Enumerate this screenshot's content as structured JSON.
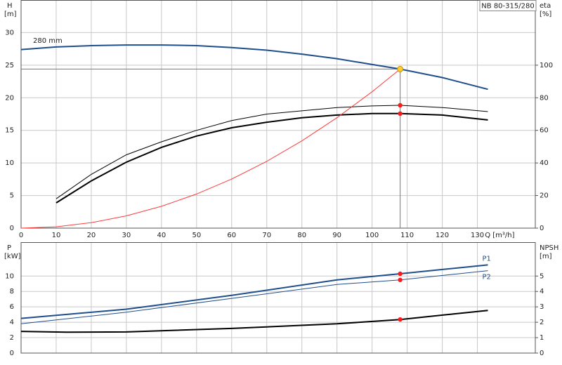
{
  "chart_data": [
    {
      "type": "line",
      "id_label": "NB 80-315/280",
      "ylabel": "H",
      "yunit": "[m]",
      "y2label": "eta",
      "y2unit": "[%]",
      "xlabel": "Q [m³/h]",
      "xlim": [
        0,
        146.5
      ],
      "ylim": [
        0,
        35
      ],
      "y2lim": [
        0,
        140
      ],
      "xticks": [
        0,
        10,
        20,
        30,
        40,
        50,
        60,
        70,
        80,
        90,
        100,
        110,
        120,
        130
      ],
      "yticks": [
        0,
        5,
        10,
        15,
        20,
        25,
        30
      ],
      "y2ticks": [
        0,
        20,
        40,
        60,
        80,
        100
      ],
      "grid": true,
      "series": [
        {
          "name": "280 mm",
          "color": "#1f4e8c",
          "line_width": 2,
          "axis": "y",
          "x": [
            0,
            10,
            20,
            30,
            40,
            50,
            60,
            70,
            80,
            90,
            100,
            108,
            120,
            133
          ],
          "values": [
            27.4,
            27.8,
            28.0,
            28.1,
            28.1,
            28.0,
            27.7,
            27.3,
            26.7,
            26.0,
            25.1,
            24.4,
            23.1,
            21.3
          ]
        },
        {
          "color": "#000000",
          "line_width": 1,
          "axis": "y2",
          "x": [
            10,
            20,
            30,
            40,
            50,
            60,
            70,
            80,
            90,
            100,
            108,
            120,
            133
          ],
          "values": [
            18,
            33,
            45,
            53,
            60,
            66,
            70,
            72,
            74,
            75,
            75.4,
            74,
            71.5
          ]
        },
        {
          "color": "#000000",
          "line_width": 2,
          "axis": "y2",
          "x": [
            10,
            20,
            30,
            40,
            50,
            60,
            70,
            80,
            90,
            100,
            108,
            120,
            133
          ],
          "values": [
            15.5,
            29,
            40.5,
            49.6,
            56.5,
            61.6,
            65,
            67.7,
            69.4,
            70.3,
            70.3,
            69.4,
            66.4
          ]
        },
        {
          "color": "#ff3b3b",
          "line_width": 1,
          "axis": "y",
          "x": [
            0,
            10,
            20,
            30,
            40,
            50,
            60,
            70,
            80,
            90,
            100,
            108
          ],
          "values": [
            0,
            0.21,
            0.84,
            1.88,
            3.35,
            5.23,
            7.53,
            10.25,
            13.39,
            16.94,
            20.92,
            24.4
          ]
        }
      ],
      "points": [
        {
          "x": 108,
          "y": 75.4,
          "axis": "y2",
          "color": "#ff1a1a"
        },
        {
          "x": 108,
          "y": 70.3,
          "axis": "y2",
          "color": "#ff1a1a"
        },
        {
          "x": 108,
          "y": 24.4,
          "axis": "y",
          "color": "#ffcc33",
          "guides": true
        }
      ]
    },
    {
      "type": "line",
      "ylabel": "P",
      "yunit": "[kW]",
      "y2label": "NPSH",
      "y2unit": "[m]",
      "xlim": [
        0,
        146.5
      ],
      "ylim": [
        0,
        14.4
      ],
      "y2lim": [
        0,
        7.2
      ],
      "yticks": [
        0,
        2,
        4,
        6,
        8,
        10
      ],
      "y2ticks": [
        0,
        1,
        2,
        3,
        4,
        5
      ],
      "grid": true,
      "series": [
        {
          "name": "P1",
          "color": "#1f4e8c",
          "line_width": 2,
          "axis": "y",
          "x": [
            0,
            30,
            60,
            90,
            108,
            133
          ],
          "values": [
            4.5,
            5.7,
            7.5,
            9.5,
            10.3,
            11.45
          ]
        },
        {
          "name": "P2",
          "color": "#1f4e8c",
          "line_width": 1,
          "axis": "y",
          "x": [
            0,
            30,
            60,
            90,
            108,
            133
          ],
          "values": [
            3.8,
            5.3,
            7.1,
            8.9,
            9.5,
            10.7
          ]
        },
        {
          "color": "#000000",
          "line_width": 2,
          "axis": "y2",
          "x": [
            0,
            13,
            30,
            60,
            90,
            108,
            133
          ],
          "values": [
            1.41,
            1.36,
            1.37,
            1.6,
            1.9,
            2.18,
            2.77
          ]
        }
      ],
      "points": [
        {
          "x": 108,
          "y": 10.3,
          "axis": "y",
          "color": "#ff1a1a"
        },
        {
          "x": 108,
          "y": 9.5,
          "axis": "y",
          "color": "#ff1a1a"
        },
        {
          "x": 108,
          "y": 2.18,
          "axis": "y2",
          "color": "#ff1a1a"
        }
      ]
    }
  ]
}
